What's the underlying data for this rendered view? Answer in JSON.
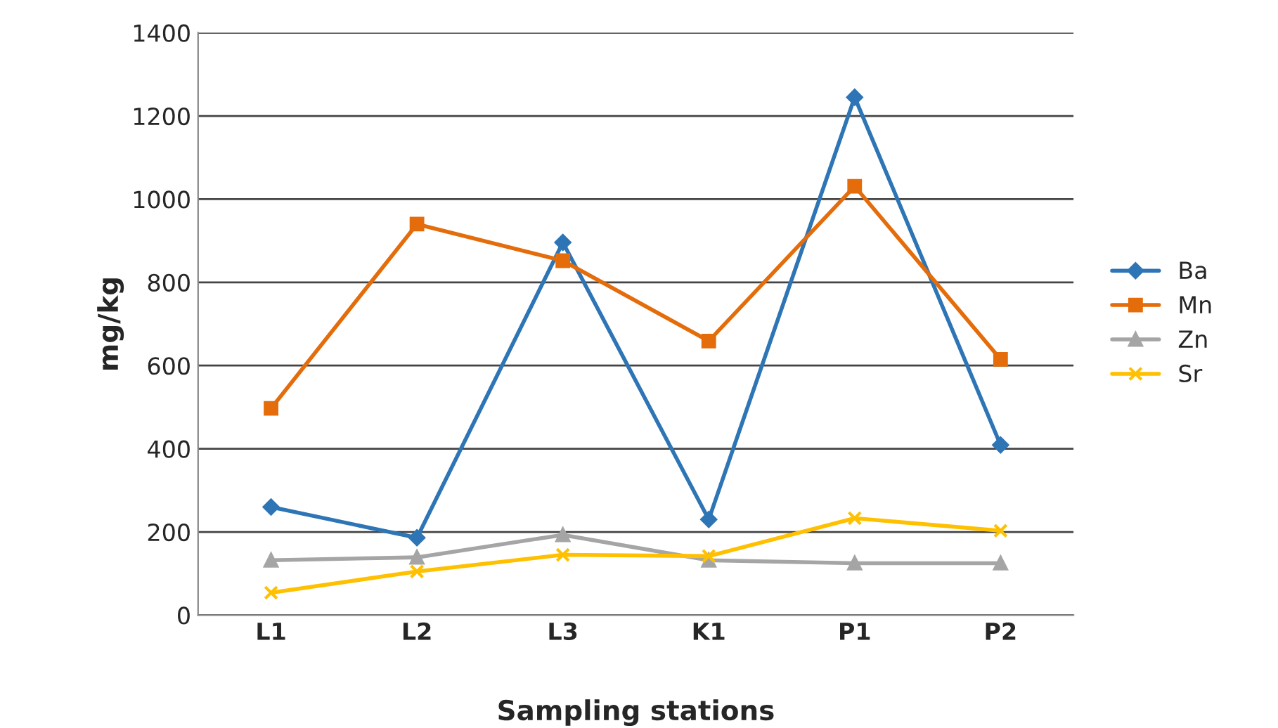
{
  "chart_data": {
    "type": "line",
    "xlabel": "Sampling stations",
    "ylabel": "mg/kg",
    "categories": [
      "L1",
      "L2",
      "L3",
      "K1",
      "P1",
      "P2"
    ],
    "series": [
      {
        "name": "Ba",
        "color": "#2e75b6",
        "marker": "diamond",
        "values": [
          260,
          186,
          896,
          230,
          1245,
          409
        ]
      },
      {
        "name": "Mn",
        "color": "#e46c0a",
        "marker": "square",
        "values": [
          497,
          940,
          852,
          659,
          1031,
          615
        ]
      },
      {
        "name": "Zn",
        "color": "#a5a5a5",
        "marker": "triangle",
        "values": [
          132,
          139,
          193,
          132,
          125,
          125
        ]
      },
      {
        "name": "Sr",
        "color": "#ffc000",
        "marker": "cross",
        "values": [
          54,
          105,
          145,
          142,
          233,
          203
        ]
      }
    ],
    "ylim": [
      0,
      1400
    ],
    "yticks": [
      0,
      200,
      400,
      600,
      800,
      1000,
      1200,
      1400
    ],
    "grid": "y",
    "legend": "right",
    "line_style": "solid"
  }
}
